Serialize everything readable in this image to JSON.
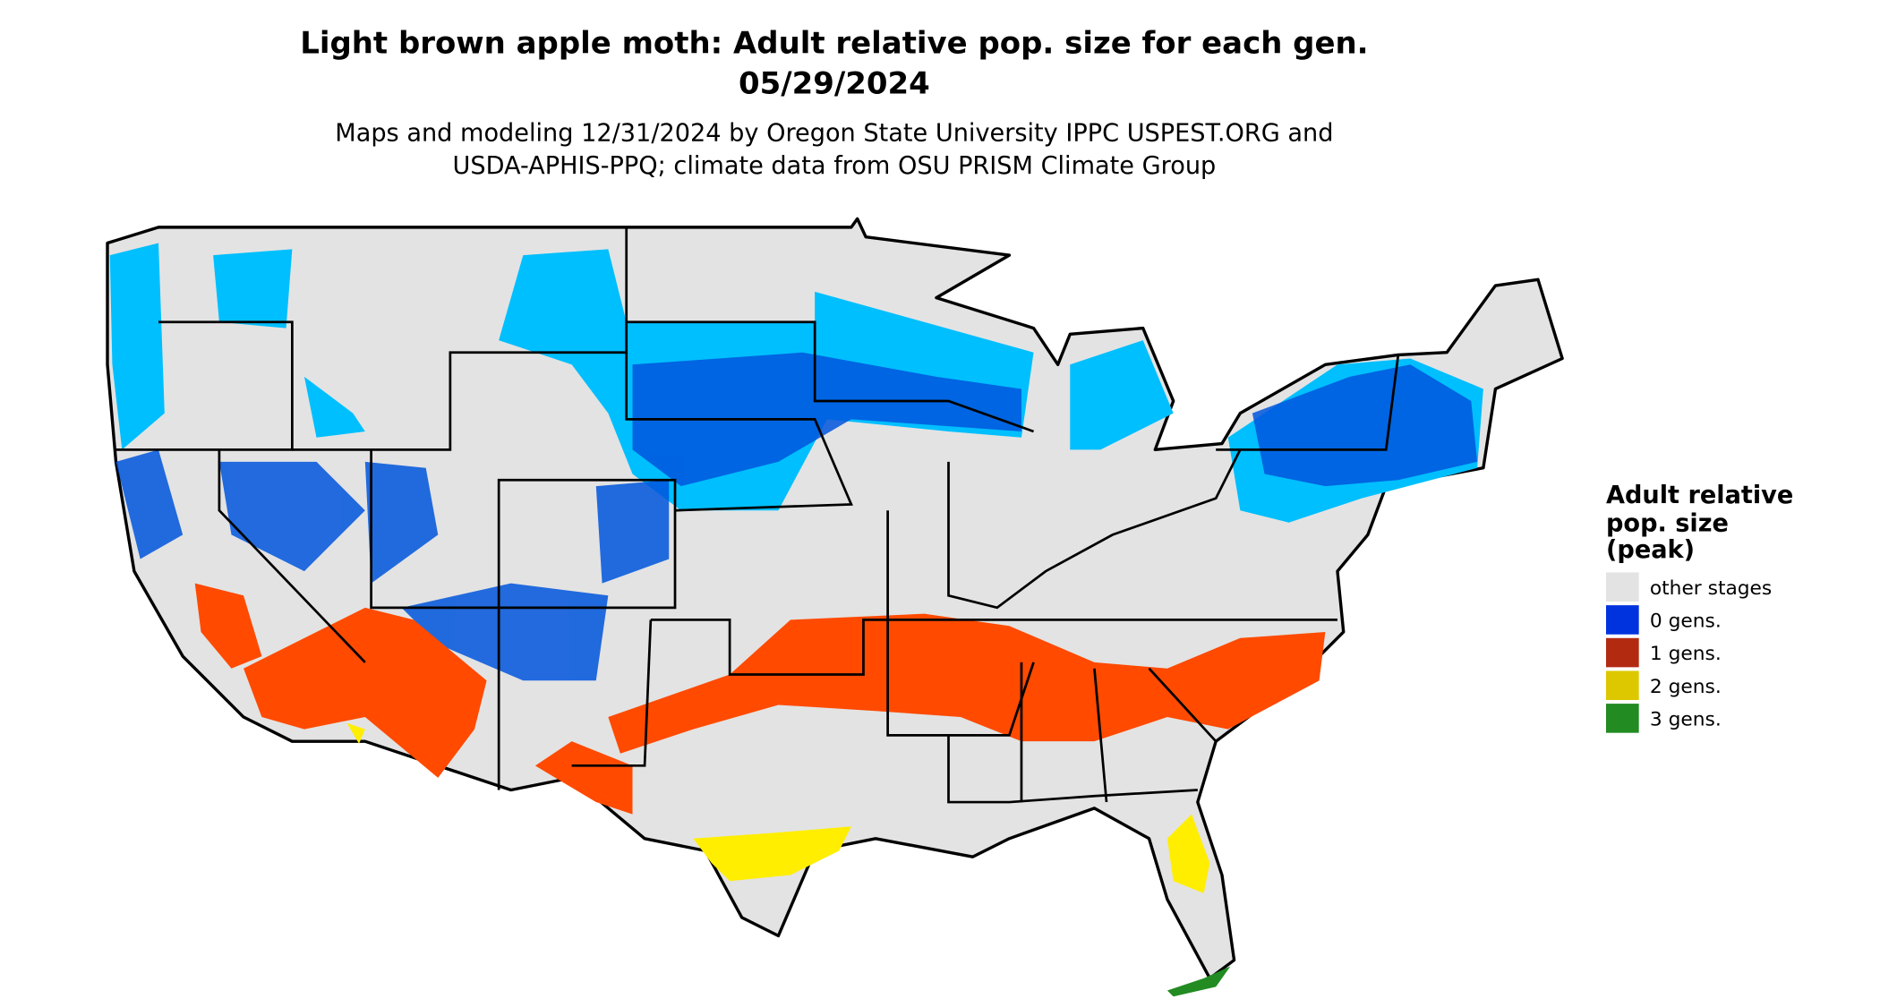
{
  "title": [
    "Light brown apple moth: Adult relative pop. size for each gen.",
    "05/29/2024"
  ],
  "subtitle": [
    "Maps and modeling 12/31/2024 by Oregon State University IPPC USPEST.ORG and",
    "USDA-APHIS-PPQ; climate data from OSU PRISM Climate Group"
  ],
  "legend": {
    "title": [
      "Adult relative",
      "pop. size",
      "(peak)"
    ],
    "items": [
      {
        "label": "other stages",
        "color": "#e3e3e3"
      },
      {
        "label": "0 gens.",
        "color": "#0033dd"
      },
      {
        "label": "1 gens.",
        "color": "#b22a10"
      },
      {
        "label": "2 gens.",
        "color": "#ddc800"
      },
      {
        "label": "3 gens.",
        "color": "#228b22"
      }
    ]
  }
}
